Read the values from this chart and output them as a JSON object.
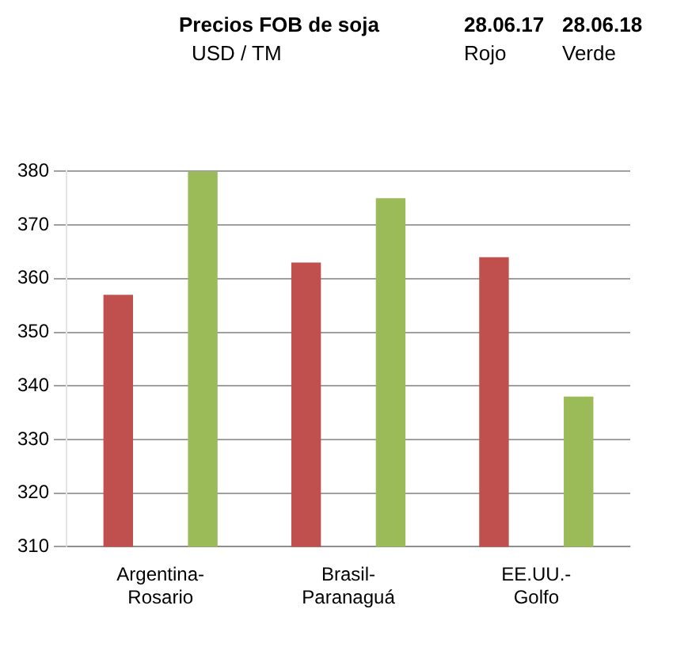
{
  "chart_data": {
    "type": "bar",
    "title": "Precios FOB de soja",
    "subtitle": "USD / TM",
    "annotations": [
      "28.06.17",
      "Rojo",
      "28.06.18",
      "Verde"
    ],
    "categories": [
      "Argentina-Rosario",
      "Brasil-Paranaguá",
      "EE.UU.-Golfo"
    ],
    "series": [
      {
        "color": "#c0504d",
        "values": [
          357,
          363,
          364
        ]
      },
      {
        "color": "#9bbb59",
        "values": [
          380,
          375,
          338
        ]
      }
    ],
    "ylim": [
      310,
      380
    ],
    "yticks": [
      310,
      320,
      330,
      340,
      350,
      360,
      370,
      380
    ],
    "grid": "y"
  }
}
